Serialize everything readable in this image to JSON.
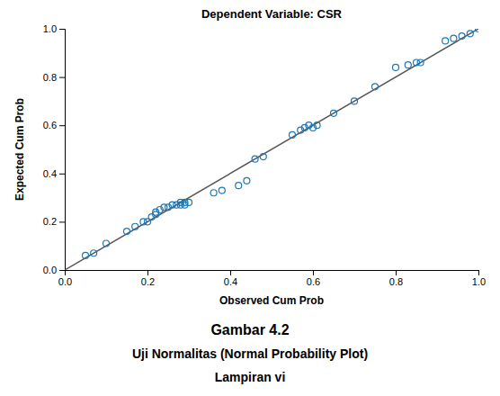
{
  "chart_data": {
    "type": "scatter",
    "title": "Dependent Variable: CSR",
    "x_label": "Observed Cum Prob",
    "y_label": "Expected Cum Prob",
    "annotations": [
      "Gambar 4.2",
      "Uji Normalitas (Normal Probability Plot)",
      "Lampiran vi"
    ],
    "marker": "open-circle",
    "grid": false,
    "x": [
      0.05,
      0.07,
      0.1,
      0.15,
      0.17,
      0.19,
      0.2,
      0.21,
      0.22,
      0.22,
      0.23,
      0.24,
      0.25,
      0.26,
      0.27,
      0.28,
      0.28,
      0.29,
      0.29,
      0.3,
      0.36,
      0.38,
      0.42,
      0.44,
      0.46,
      0.48,
      0.55,
      0.57,
      0.58,
      0.59,
      0.6,
      0.61,
      0.65,
      0.7,
      0.75,
      0.8,
      0.83,
      0.85,
      0.86,
      0.92,
      0.94,
      0.96,
      0.98,
      1.0
    ],
    "values": [
      0.06,
      0.07,
      0.11,
      0.16,
      0.18,
      0.2,
      0.2,
      0.22,
      0.23,
      0.24,
      0.25,
      0.26,
      0.26,
      0.27,
      0.27,
      0.27,
      0.28,
      0.28,
      0.27,
      0.28,
      0.32,
      0.33,
      0.35,
      0.37,
      0.46,
      0.47,
      0.56,
      0.58,
      0.59,
      0.6,
      0.59,
      0.6,
      0.65,
      0.7,
      0.76,
      0.84,
      0.85,
      0.86,
      0.86,
      0.95,
      0.96,
      0.97,
      0.98,
      1.0
    ],
    "reference_line": {
      "type": "line",
      "line_style": "solid",
      "x": [
        0,
        1
      ],
      "values": [
        0,
        1
      ]
    },
    "xlim": [
      0,
      1
    ],
    "ylim": [
      0,
      1
    ],
    "xticks": [
      {
        "value": 0,
        "label": "0.0"
      },
      0.2,
      0.4,
      0.6,
      0.8,
      {
        "value": 1,
        "label": "1.0"
      }
    ],
    "yticks": [
      {
        "value": 0,
        "label": "0.0"
      },
      0.2,
      0.4,
      0.6,
      0.8,
      {
        "value": 1,
        "label": "1.0"
      }
    ]
  }
}
